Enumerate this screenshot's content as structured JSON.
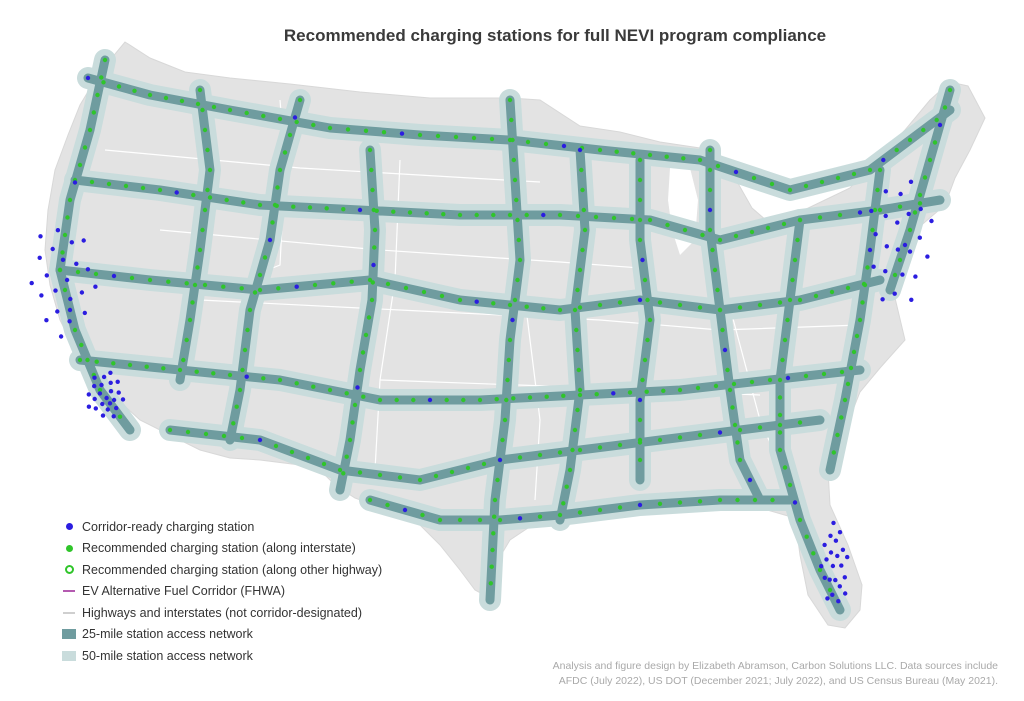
{
  "title": "Recommended charging stations for full NEVI program compliance",
  "legend": [
    {
      "label": "Corridor-ready charging station",
      "symbol": "dot",
      "color": "#2b1de0"
    },
    {
      "label": "Recommended charging station (along interstate)",
      "symbol": "dot",
      "color": "#2fc52a"
    },
    {
      "label": "Recommended charging station (along other highway)",
      "symbol": "ring",
      "color": "#2fc52a"
    },
    {
      "label": "EV Alternative Fuel Corridor (FHWA)",
      "symbol": "line",
      "color": "#b45ab0"
    },
    {
      "label": "Highways and interstates (not corridor-designated)",
      "symbol": "line",
      "color": "#cfcfcf"
    },
    {
      "label": "25-mile station access network",
      "symbol": "box",
      "color": "#6f9c9f"
    },
    {
      "label": "50-mile station access network",
      "symbol": "box",
      "color": "#c9dcdc"
    }
  ],
  "credit": {
    "line1": "Analysis and figure design by Elizabeth Abramson, Carbon Solutions LLC. Data sources include",
    "line2": "AFDC (July 2022), US DOT (December 2021; July 2022), and US Census Bureau (May 2021)."
  },
  "colors": {
    "land": "#e3e3e3",
    "borders": "#ffffff",
    "network_25": "#6f9c9f",
    "network_50": "#c9dcdc",
    "corridor_ready": "#2b1de0",
    "interstate_station": "#2fc52a"
  }
}
